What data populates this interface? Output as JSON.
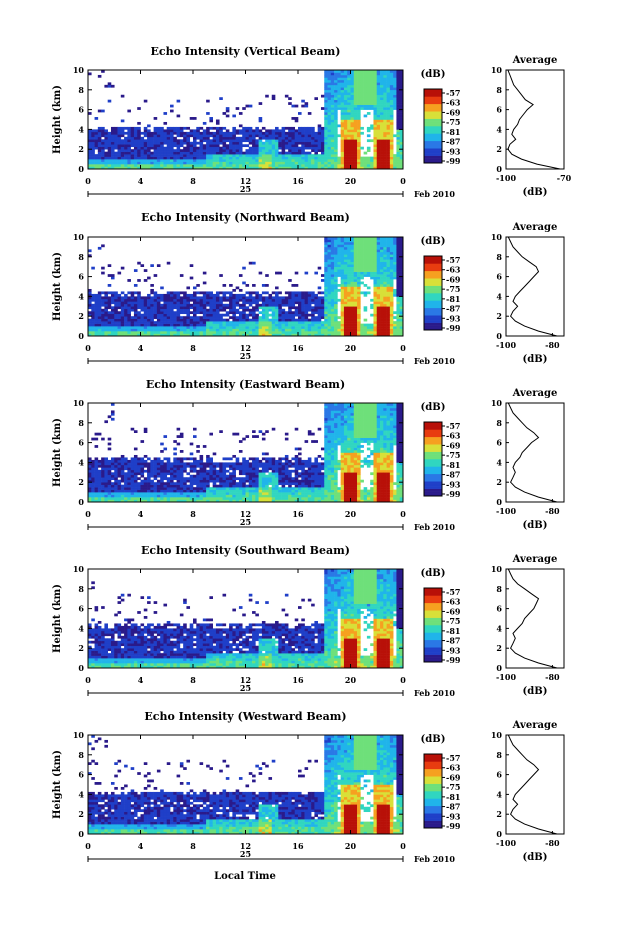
{
  "panels": [
    {
      "title": "Echo Intensity (Vertical Beam)",
      "average_title": "Average",
      "avg_xticks": [
        "-100",
        "-70"
      ]
    },
    {
      "title": "Echo Intensity (Northward Beam)",
      "average_title": "Average",
      "avg_xticks": [
        "-100",
        "-80"
      ]
    },
    {
      "title": "Echo Intensity (Eastward Beam)",
      "average_title": "Average",
      "avg_xticks": [
        "-100",
        "-80"
      ]
    },
    {
      "title": "Echo Intensity (Southward Beam)",
      "average_title": "Average",
      "avg_xticks": [
        "-100",
        "-80"
      ]
    },
    {
      "title": "Echo Intensity (Westward Beam)",
      "average_title": "Average",
      "avg_xticks": [
        "-100",
        "-80"
      ]
    }
  ],
  "axes": {
    "ylabel": "Height (km)",
    "yticks": [
      "0",
      "2",
      "4",
      "6",
      "8",
      "10"
    ],
    "xticks": [
      "0",
      "4",
      "8",
      "12",
      "16",
      "20",
      "0"
    ],
    "date_label": "25",
    "month_label": "Feb 2010",
    "xlabel": "Local Time",
    "colorbar_unit": "(dB)",
    "colorbar_ticks": [
      "-57",
      "-63",
      "-69",
      "-75",
      "-81",
      "-87",
      "-93",
      "-99"
    ],
    "avg_xlabel": "(dB)",
    "avg_yticks": [
      "0",
      "2",
      "4",
      "6",
      "8",
      "10"
    ]
  },
  "colors": {
    "colormap": [
      "#2a1a8a",
      "#1f3fc8",
      "#2a78e6",
      "#20b4ea",
      "#30d6c0",
      "#6ee07a",
      "#d8e038",
      "#f6a020",
      "#e83c10",
      "#b81008"
    ]
  },
  "chart_data": [
    {
      "type": "heatmap",
      "title": "Echo Intensity (Vertical Beam)",
      "xlabel": "Local Time",
      "ylabel": "Height (km)",
      "x_range_hours": [
        0,
        24
      ],
      "y_range_km": [
        0,
        10
      ],
      "color_range_db": [
        -99,
        -57
      ],
      "features": {
        "low_layer_top_km": 4.2,
        "deep_convection_start_hour": 18,
        "convective_cores_hours": [
          20,
          22.5
        ]
      },
      "average_profile": {
        "xlabel": "(dB)",
        "xlim": [
          -100,
          -70
        ],
        "height_km": [
          0,
          0.5,
          1,
          1.5,
          2,
          2.5,
          3,
          3.5,
          4,
          4.5,
          5,
          5.5,
          6,
          6.5,
          7,
          7.5,
          8,
          8.5,
          9,
          9.5,
          10
        ],
        "db": [
          -72,
          -84,
          -92,
          -97,
          -99,
          -98,
          -95,
          -97,
          -96,
          -94,
          -93,
          -91,
          -89,
          -86,
          -90,
          -92,
          -94,
          -96,
          -97,
          -98,
          -99
        ]
      }
    },
    {
      "type": "heatmap",
      "title": "Echo Intensity (Northward Beam)",
      "xlabel": "Local Time",
      "ylabel": "Height (km)",
      "x_range_hours": [
        0,
        24
      ],
      "y_range_km": [
        0,
        10
      ],
      "color_range_db": [
        -99,
        -57
      ],
      "features": {
        "low_layer_top_km": 4.5,
        "deep_convection_start_hour": 18,
        "convective_cores_hours": [
          20,
          22.5
        ]
      },
      "average_profile": {
        "xlabel": "(dB)",
        "xlim": [
          -100,
          -75
        ],
        "height_km": [
          0,
          0.5,
          1,
          1.5,
          2,
          2.5,
          3,
          3.5,
          4,
          4.5,
          5,
          5.5,
          6,
          6.5,
          7,
          7.5,
          8,
          8.5,
          9,
          9.5,
          10
        ],
        "db": [
          -78,
          -86,
          -92,
          -96,
          -98,
          -97,
          -95,
          -97,
          -96,
          -94,
          -92,
          -90,
          -88,
          -86,
          -87,
          -90,
          -93,
          -95,
          -97,
          -98,
          -99
        ]
      }
    },
    {
      "type": "heatmap",
      "title": "Echo Intensity (Eastward Beam)",
      "xlabel": "Local Time",
      "ylabel": "Height (km)",
      "x_range_hours": [
        0,
        24
      ],
      "y_range_km": [
        0,
        10
      ],
      "color_range_db": [
        -99,
        -57
      ],
      "features": {
        "low_layer_top_km": 4.5,
        "deep_convection_start_hour": 18,
        "convective_cores_hours": [
          20,
          22.5
        ]
      },
      "average_profile": {
        "xlabel": "(dB)",
        "xlim": [
          -100,
          -75
        ],
        "height_km": [
          0,
          0.5,
          1,
          1.5,
          2,
          2.5,
          3,
          3.5,
          4,
          4.5,
          5,
          5.5,
          6,
          6.5,
          7,
          7.5,
          8,
          8.5,
          9,
          9.5,
          10
        ],
        "db": [
          -78,
          -86,
          -92,
          -96,
          -98,
          -97,
          -96,
          -97,
          -96,
          -94,
          -93,
          -91,
          -89,
          -86,
          -88,
          -91,
          -93,
          -95,
          -97,
          -98,
          -99
        ]
      }
    },
    {
      "type": "heatmap",
      "title": "Echo Intensity (Southward Beam)",
      "xlabel": "Local Time",
      "ylabel": "Height (km)",
      "x_range_hours": [
        0,
        24
      ],
      "y_range_km": [
        0,
        10
      ],
      "color_range_db": [
        -99,
        -57
      ],
      "features": {
        "low_layer_top_km": 4.5,
        "deep_convection_start_hour": 18,
        "convective_cores_hours": [
          20,
          22.5
        ]
      },
      "average_profile": {
        "xlabel": "(dB)",
        "xlim": [
          -100,
          -75
        ],
        "height_km": [
          0,
          0.5,
          1,
          1.5,
          2,
          2.5,
          3,
          3.5,
          4,
          4.5,
          5,
          5.5,
          6,
          6.5,
          7,
          7.5,
          8,
          8.5,
          9,
          9.5,
          10
        ],
        "db": [
          -78,
          -86,
          -92,
          -96,
          -98,
          -97,
          -96,
          -97,
          -95,
          -93,
          -92,
          -90,
          -88,
          -87,
          -86,
          -89,
          -92,
          -95,
          -97,
          -98,
          -99
        ]
      }
    },
    {
      "type": "heatmap",
      "title": "Echo Intensity (Westward Beam)",
      "xlabel": "Local Time",
      "ylabel": "Height (km)",
      "x_range_hours": [
        0,
        24
      ],
      "y_range_km": [
        0,
        10
      ],
      "color_range_db": [
        -99,
        -57
      ],
      "features": {
        "low_layer_top_km": 4.3,
        "deep_convection_start_hour": 18,
        "convective_cores_hours": [
          20,
          22.5
        ]
      },
      "average_profile": {
        "xlabel": "(dB)",
        "xlim": [
          -100,
          -75
        ],
        "height_km": [
          0,
          0.5,
          1,
          1.5,
          2,
          2.5,
          3,
          3.5,
          4,
          4.5,
          5,
          5.5,
          6,
          6.5,
          7,
          7.5,
          8,
          8.5,
          9,
          9.5,
          10
        ],
        "db": [
          -78,
          -86,
          -92,
          -96,
          -98,
          -97,
          -95,
          -97,
          -96,
          -94,
          -92,
          -90,
          -88,
          -86,
          -88,
          -91,
          -93,
          -95,
          -97,
          -98,
          -99
        ]
      }
    }
  ]
}
